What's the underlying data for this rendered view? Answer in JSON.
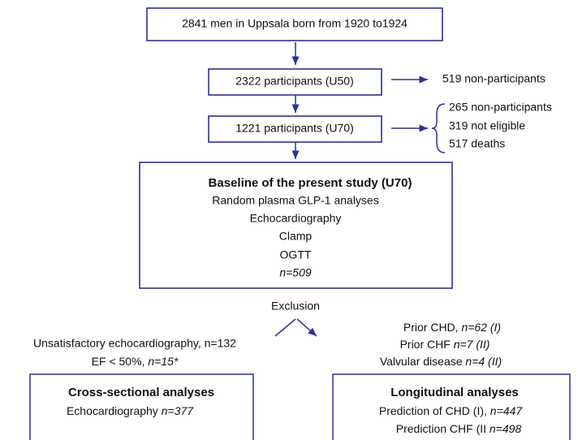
{
  "population": {
    "label": "2841 men in Uppsala born from 1920 to1924"
  },
  "u50": {
    "label": "2322 participants (U50)",
    "excluded": "519 non-participants"
  },
  "u70": {
    "label": "1221 participants (U70)",
    "excluded": [
      "265 non-participants",
      "319 not eligible",
      "517 deaths"
    ]
  },
  "baseline": {
    "title": "Baseline of the present study (U70)",
    "lines": [
      "Random plasma GLP-1 analyses",
      "Echocardiography",
      "Clamp",
      "OGTT"
    ],
    "n": "n=509"
  },
  "exclusion": {
    "label": "Exclusion",
    "left": [
      {
        "text": "Unsatisfactory echocardiography,  n=132"
      },
      {
        "text": "EF < 50%, ",
        "n": "n=15*"
      }
    ],
    "right": [
      {
        "text": "Prior CHD, ",
        "n": "n=62 (I)"
      },
      {
        "text": "Prior CHF ",
        "n": "n=7 (II)"
      },
      {
        "text": "Valvular disease ",
        "n": "n=4 (II)"
      }
    ]
  },
  "cross_sectional": {
    "title": "Cross-sectional analyses",
    "lines": [
      {
        "text": "Echocardiography ",
        "n": "n=377"
      }
    ]
  },
  "longitudinal": {
    "title": "Longitudinal analyses",
    "lines": [
      {
        "text": "Prediction of CHD (I),  ",
        "n": "n=447"
      },
      {
        "text": "Prediction CHF (II ",
        "n": "n=498"
      }
    ]
  }
}
